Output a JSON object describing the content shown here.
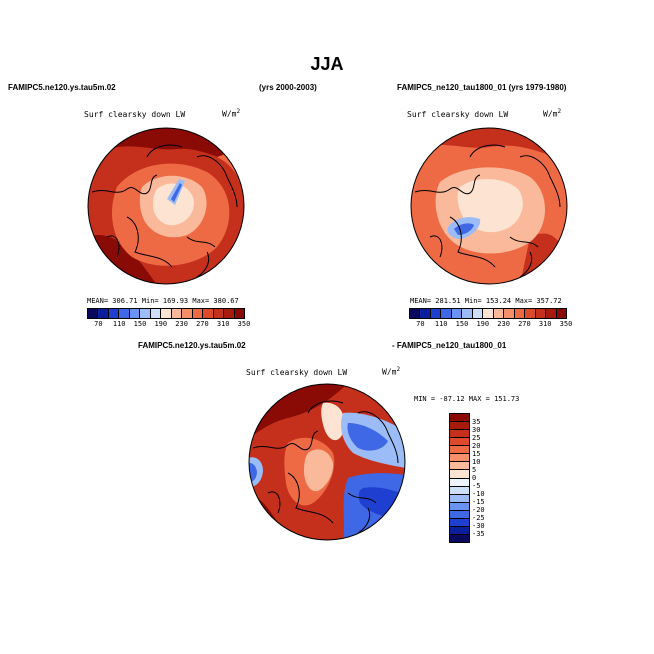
{
  "title": "JJA",
  "top_left_header": "FAMIPC5.ne120.ys.tau5m.02",
  "top_middle_header": "(yrs 2000-2003)",
  "top_right_header": "FAMIPC5_ne120_tau1800_01 (yrs 1979-1980)",
  "bottom_left_header": "FAMIPC5.ne120.ys.tau5m.02",
  "bottom_right_header": "- FAMIPC5_ne120_tau1800_01",
  "panels": [
    {
      "variable": "Surf clearsky down LW",
      "units_base": "W/m",
      "units_sup": "2",
      "stats": "MEAN= 306.71    Min= 169.93    Max= 380.67"
    },
    {
      "variable": "Surf clearsky down LW",
      "units_base": "W/m",
      "units_sup": "2",
      "stats": "MEAN= 281.51    Min= 153.24    Max= 357.72"
    },
    {
      "variable": "Surf clearsky down LW",
      "units_base": "W/m",
      "units_sup": "2",
      "stats": "MIN = -87.12  MAX = 151.73"
    }
  ],
  "colorbar_horizontal": {
    "labels": [
      "70",
      "110",
      "150",
      "190",
      "230",
      "270",
      "310",
      "350"
    ],
    "colors": [
      "#08085c",
      "#0b1e9c",
      "#1f3fd0",
      "#3f68e6",
      "#6a94f2",
      "#9cbcf7",
      "#cddff9",
      "#fde3d2",
      "#f9b99a",
      "#f48f6a",
      "#ee6a45",
      "#dd4a2b",
      "#c4301b",
      "#a71b0f",
      "#8a0a06"
    ]
  },
  "colorbar_vertical": {
    "labels": [
      "35",
      "30",
      "25",
      "20",
      "15",
      "10",
      "5",
      "0",
      "-5",
      "-10",
      "-15",
      "-20",
      "-25",
      "-30",
      "-35"
    ],
    "colors": [
      "#8a0a06",
      "#a71b0f",
      "#c4301b",
      "#dd4a2b",
      "#ee6a45",
      "#f48f6a",
      "#f9b99a",
      "#fde3d2",
      "#eef4fd",
      "#cddff9",
      "#9cbcf7",
      "#6a94f2",
      "#3f68e6",
      "#1f3fd0",
      "#0b1e9c",
      "#08085c"
    ]
  },
  "map_colors": {
    "high": "#c4301b",
    "mid": "#ee6a45",
    "light": "#f9b99a",
    "pale": "#fde3d2",
    "blue_light": "#9cbcf7",
    "blue": "#3f68e6",
    "blue_dark": "#1f3fd0",
    "dark_red": "#8a0a06",
    "coast": "#000000"
  }
}
